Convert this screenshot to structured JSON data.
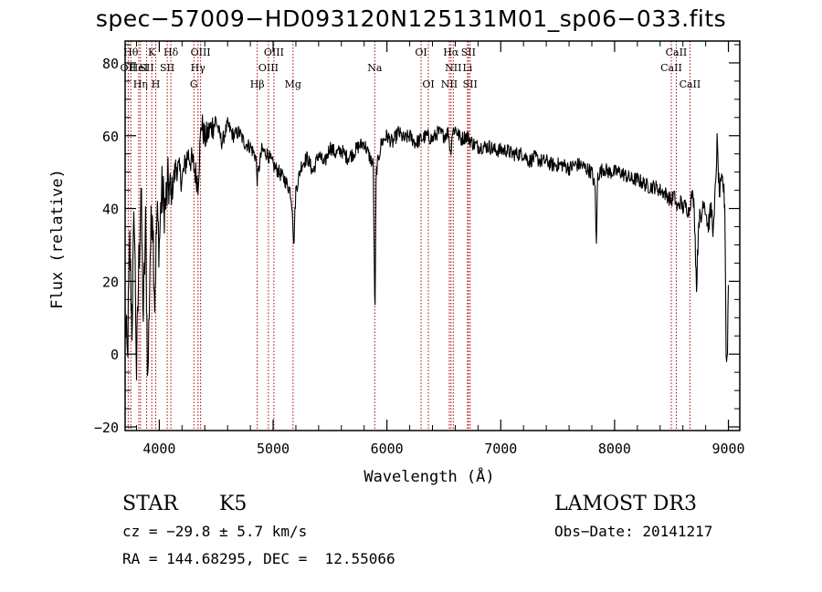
{
  "title": "spec−57009−HD093120N125131M01_sp06−033.fits",
  "chart_data": {
    "type": "line",
    "title": "spec−57009−HD093120N125131M01_sp06−033.fits",
    "xlabel": "Wavelength (Å)",
    "ylabel": "Flux (relative)",
    "xlim": [
      3700,
      9100
    ],
    "ylim": [
      -21,
      86
    ],
    "xticks": [
      4000,
      5000,
      6000,
      7000,
      8000,
      9000
    ],
    "yticks": [
      -20,
      0,
      20,
      40,
      60,
      80
    ],
    "ytick_labels": [
      "−20",
      "0",
      "20",
      "40",
      "60",
      "80"
    ],
    "series": [
      {
        "name": "flux",
        "color": "#000000",
        "anchors": [
          [
            3700,
            10
          ],
          [
            3720,
            -2
          ],
          [
            3740,
            30
          ],
          [
            3760,
            8
          ],
          [
            3780,
            40
          ],
          [
            3800,
            -5
          ],
          [
            3820,
            25
          ],
          [
            3840,
            45
          ],
          [
            3860,
            10
          ],
          [
            3880,
            35
          ],
          [
            3900,
            -8
          ],
          [
            3920,
            28
          ],
          [
            3940,
            42
          ],
          [
            3960,
            15
          ],
          [
            3980,
            38
          ],
          [
            4000,
            30
          ],
          [
            4020,
            45
          ],
          [
            4050,
            40
          ],
          [
            4080,
            47
          ],
          [
            4100,
            43
          ],
          [
            4150,
            52
          ],
          [
            4200,
            48
          ],
          [
            4250,
            55
          ],
          [
            4300,
            52
          ],
          [
            4340,
            47
          ],
          [
            4370,
            64
          ],
          [
            4400,
            59
          ],
          [
            4450,
            62
          ],
          [
            4500,
            64
          ],
          [
            4550,
            58
          ],
          [
            4600,
            63
          ],
          [
            4650,
            60
          ],
          [
            4700,
            61
          ],
          [
            4750,
            58
          ],
          [
            4800,
            57
          ],
          [
            4850,
            54
          ],
          [
            4860,
            48
          ],
          [
            4900,
            56
          ],
          [
            4950,
            55
          ],
          [
            5000,
            52
          ],
          [
            5050,
            50
          ],
          [
            5100,
            48
          ],
          [
            5150,
            45
          ],
          [
            5170,
            40
          ],
          [
            5180,
            29
          ],
          [
            5200,
            45
          ],
          [
            5250,
            52
          ],
          [
            5300,
            54
          ],
          [
            5350,
            50
          ],
          [
            5400,
            55
          ],
          [
            5450,
            52
          ],
          [
            5500,
            57
          ],
          [
            5550,
            55
          ],
          [
            5600,
            56
          ],
          [
            5650,
            54
          ],
          [
            5700,
            55
          ],
          [
            5750,
            57
          ],
          [
            5800,
            58
          ],
          [
            5850,
            54
          ],
          [
            5880,
            52
          ],
          [
            5890,
            20
          ],
          [
            5896,
            12
          ],
          [
            5905,
            50
          ],
          [
            5950,
            58
          ],
          [
            6000,
            60
          ],
          [
            6050,
            58
          ],
          [
            6100,
            61
          ],
          [
            6150,
            59
          ],
          [
            6200,
            60
          ],
          [
            6250,
            58
          ],
          [
            6300,
            59
          ],
          [
            6350,
            60
          ],
          [
            6400,
            59
          ],
          [
            6450,
            61
          ],
          [
            6500,
            60
          ],
          [
            6540,
            61
          ],
          [
            6560,
            55
          ],
          [
            6575,
            61
          ],
          [
            6600,
            62
          ],
          [
            6650,
            59
          ],
          [
            6700,
            60
          ],
          [
            6750,
            58
          ],
          [
            6800,
            57
          ],
          [
            6850,
            57
          ],
          [
            6900,
            57
          ],
          [
            6950,
            56
          ],
          [
            7000,
            56
          ],
          [
            7050,
            56
          ],
          [
            7100,
            55
          ],
          [
            7150,
            55
          ],
          [
            7200,
            55
          ],
          [
            7250,
            53
          ],
          [
            7300,
            54
          ],
          [
            7350,
            53
          ],
          [
            7400,
            53
          ],
          [
            7450,
            52
          ],
          [
            7500,
            52
          ],
          [
            7550,
            52
          ],
          [
            7600,
            51
          ],
          [
            7650,
            52
          ],
          [
            7700,
            52
          ],
          [
            7750,
            51
          ],
          [
            7800,
            50
          ],
          [
            7830,
            45
          ],
          [
            7840,
            29
          ],
          [
            7850,
            49
          ],
          [
            7900,
            51
          ],
          [
            7950,
            50
          ],
          [
            8000,
            50
          ],
          [
            8050,
            50
          ],
          [
            8100,
            49
          ],
          [
            8150,
            48
          ],
          [
            8200,
            48
          ],
          [
            8250,
            47
          ],
          [
            8300,
            46
          ],
          [
            8350,
            46
          ],
          [
            8400,
            45
          ],
          [
            8450,
            44
          ],
          [
            8500,
            42
          ],
          [
            8520,
            44
          ],
          [
            8550,
            40
          ],
          [
            8580,
            42
          ],
          [
            8600,
            40
          ],
          [
            8620,
            41
          ],
          [
            8650,
            39
          ],
          [
            8680,
            44
          ],
          [
            8700,
            41
          ],
          [
            8720,
            18
          ],
          [
            8740,
            38
          ],
          [
            8760,
            36
          ],
          [
            8780,
            43
          ],
          [
            8800,
            40
          ],
          [
            8820,
            35
          ],
          [
            8850,
            40
          ],
          [
            8870,
            33
          ],
          [
            8900,
            58
          ],
          [
            8920,
            44
          ],
          [
            8950,
            48
          ],
          [
            8970,
            40
          ],
          [
            8980,
            0
          ],
          [
            8990,
            -2
          ],
          [
            9000,
            20
          ]
        ]
      }
    ],
    "line_color": "#b00000",
    "lines": [
      {
        "wl": 3727,
        "label": "OII",
        "row": 1
      },
      {
        "wl": 3750,
        "label": "Hθ",
        "row": 0
      },
      {
        "wl": 3820,
        "label": "HeI",
        "row": 1
      },
      {
        "wl": 3835,
        "label": "Hη",
        "row": 2
      },
      {
        "wl": 3889,
        "label": "SII",
        "row": 1
      },
      {
        "wl": 3934,
        "label": "K",
        "row": 0
      },
      {
        "wl": 3969,
        "label": "H",
        "row": 2
      },
      {
        "wl": 4070,
        "label": "SII",
        "row": 1
      },
      {
        "wl": 4102,
        "label": "Hδ",
        "row": 0
      },
      {
        "wl": 4304,
        "label": "G",
        "row": 2
      },
      {
        "wl": 4340,
        "label": "Hγ",
        "row": 1
      },
      {
        "wl": 4363,
        "label": "OIII",
        "row": 0
      },
      {
        "wl": 4861,
        "label": "Hβ",
        "row": 2
      },
      {
        "wl": 4959,
        "label": "OIII",
        "row": 1
      },
      {
        "wl": 5007,
        "label": "OIII",
        "row": 0
      },
      {
        "wl": 5175,
        "label": "Mg",
        "row": 2
      },
      {
        "wl": 5893,
        "label": "Na",
        "row": 1
      },
      {
        "wl": 6300,
        "label": "OI",
        "row": 0
      },
      {
        "wl": 6364,
        "label": "OI",
        "row": 2
      },
      {
        "wl": 6548,
        "label": "NII",
        "row": 2
      },
      {
        "wl": 6563,
        "label": "Hα",
        "row": 0
      },
      {
        "wl": 6583,
        "label": "NII",
        "row": 1
      },
      {
        "wl": 6708,
        "label": "Li",
        "row": 1
      },
      {
        "wl": 6716,
        "label": "SII",
        "row": 0
      },
      {
        "wl": 6731,
        "label": "SII",
        "row": 2
      },
      {
        "wl": 8498,
        "label": "CaII",
        "row": 1
      },
      {
        "wl": 8542,
        "label": "CaII",
        "row": 0
      },
      {
        "wl": 8662,
        "label": "CaII",
        "row": 2
      }
    ]
  },
  "info": {
    "class_label": "STAR",
    "subclass": "K5",
    "cz": "cz = −29.8 ± 5.7 km/s",
    "coords": "RA = 144.68295, DEC =  12.55066",
    "survey": "LAMOST DR3",
    "obs_date": "Obs−Date: 20141217"
  }
}
